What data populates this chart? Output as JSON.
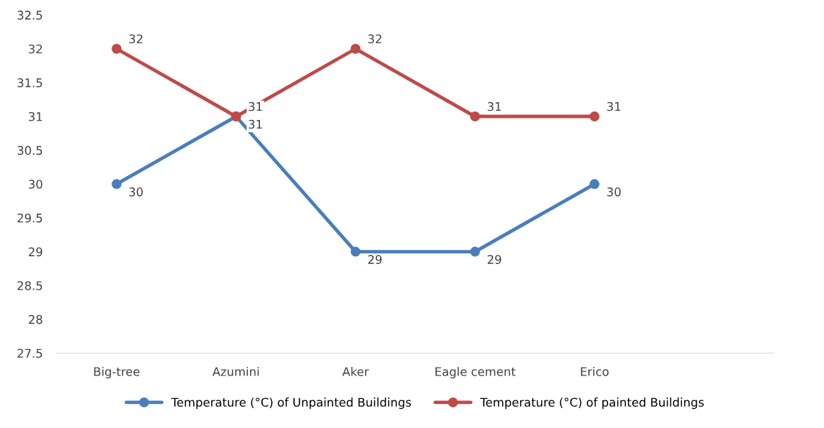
{
  "chart_data": {
    "type": "line",
    "categories": [
      "Big-tree",
      "Azumini",
      "Aker",
      "Eagle cement",
      "Erico",
      null
    ],
    "series": [
      {
        "name": "Temperature (°C) of Unpainted Buildings",
        "color": "#4a7ebb",
        "values": [
          30,
          31,
          29,
          29,
          30,
          null
        ]
      },
      {
        "name": "Temperature (°C) of painted Buildings",
        "color": "#be4b48",
        "values": [
          32,
          31,
          32,
          31,
          31,
          null
        ]
      }
    ],
    "ylim": [
      27.5,
      32.5
    ],
    "yticks": [
      27.5,
      28,
      28.5,
      29,
      29.5,
      30,
      30.5,
      31,
      31.5,
      32,
      32.5
    ],
    "grid": false,
    "legend": "bottom",
    "marker": "circle",
    "line_style": "solid",
    "data_labels": true
  }
}
